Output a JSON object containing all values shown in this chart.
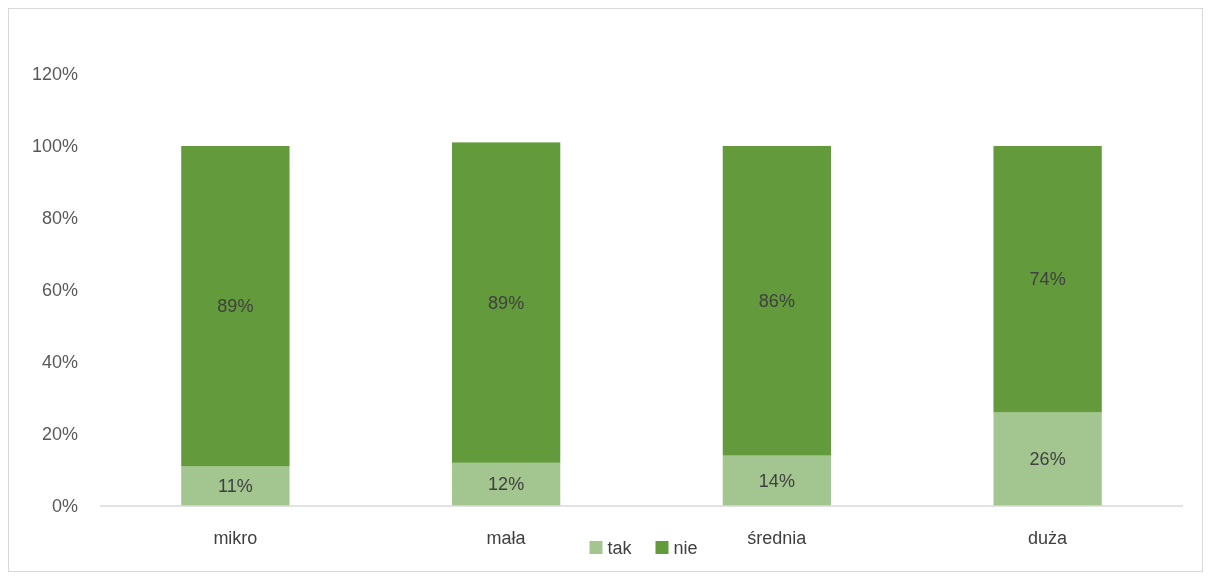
{
  "chart_data": {
    "type": "bar",
    "stacked": true,
    "categories": [
      "mikro",
      "mała",
      "średnia",
      "duża"
    ],
    "series": [
      {
        "name": "tak",
        "color": "#a3c58f",
        "values": [
          11,
          12,
          14,
          26
        ],
        "value_labels": [
          "11%",
          "12%",
          "14%",
          "26%"
        ]
      },
      {
        "name": "nie",
        "color": "#629a3c",
        "values": [
          89,
          89,
          86,
          74
        ],
        "value_labels": [
          "89%",
          "89%",
          "86%",
          "74%"
        ]
      }
    ],
    "ylim": [
      0,
      120
    ],
    "yticks": [
      {
        "value": 0,
        "label": "0%"
      },
      {
        "value": 20,
        "label": "20%"
      },
      {
        "value": 40,
        "label": "40%"
      },
      {
        "value": 60,
        "label": "60%"
      },
      {
        "value": 80,
        "label": "80%"
      },
      {
        "value": 100,
        "label": "100%"
      },
      {
        "value": 120,
        "label": "120%"
      }
    ],
    "grid": false,
    "legend": "bottom"
  }
}
